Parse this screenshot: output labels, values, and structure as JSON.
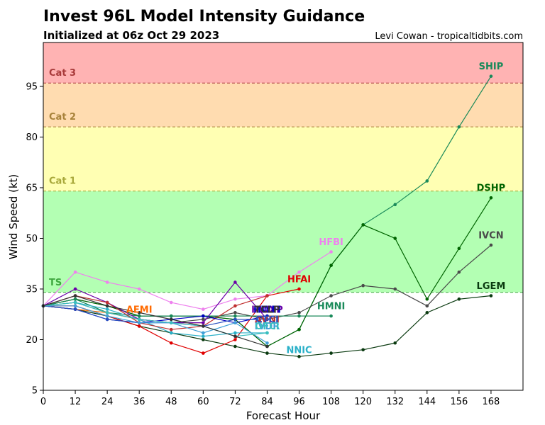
{
  "chart_data": {
    "type": "line",
    "title": "Invest 96L Model Intensity Guidance",
    "subtitle": "Initialized at 06z Oct 29 2023",
    "credit": "Levi Cowan - tropicaltidbits.com",
    "xlabel": "Forecast Hour",
    "ylabel": "Wind Speed (kt)",
    "xlim": [
      0,
      180
    ],
    "ylim": [
      5,
      108
    ],
    "xticks": [
      0,
      12,
      24,
      36,
      48,
      60,
      72,
      84,
      96,
      108,
      120,
      132,
      144,
      156,
      168
    ],
    "yticks": [
      5,
      20,
      35,
      50,
      65,
      80,
      95
    ],
    "grid": false,
    "bands": [
      {
        "label": "TS",
        "from": 34,
        "to": 64,
        "color": "#b3ffb3",
        "label_color": "#3fa83f"
      },
      {
        "label": "Cat 1",
        "from": 64,
        "to": 83,
        "color": "#ffffb3",
        "label_color": "#a8a83a"
      },
      {
        "label": "Cat 2",
        "from": 83,
        "to": 96,
        "color": "#ffdcb0",
        "label_color": "#a8823a"
      },
      {
        "label": "Cat 3",
        "from": 96,
        "to": 108,
        "color": "#ffb3b3",
        "label_color": "#a83a3a"
      }
    ],
    "series": [
      {
        "name": "SHIP",
        "color": "#1a8a5a",
        "label_at": [
          168,
          100
        ],
        "points": [
          [
            0,
            30
          ],
          [
            12,
            32
          ],
          [
            24,
            30
          ],
          [
            36,
            27
          ],
          [
            48,
            27
          ],
          [
            60,
            27
          ],
          [
            72,
            26
          ],
          [
            84,
            18
          ],
          [
            96,
            23
          ],
          [
            108,
            42
          ],
          [
            120,
            54
          ],
          [
            132,
            60
          ],
          [
            144,
            67
          ],
          [
            156,
            83
          ],
          [
            168,
            98
          ]
        ]
      },
      {
        "name": "DSHP",
        "color": "#006400",
        "label_at": [
          168,
          64
        ],
        "points": [
          [
            0,
            30
          ],
          [
            12,
            32
          ],
          [
            24,
            30
          ],
          [
            36,
            27
          ],
          [
            48,
            27
          ],
          [
            60,
            27
          ],
          [
            72,
            26
          ],
          [
            84,
            18
          ],
          [
            96,
            23
          ],
          [
            108,
            42
          ],
          [
            120,
            54
          ],
          [
            132,
            50
          ],
          [
            144,
            32
          ],
          [
            156,
            47
          ],
          [
            168,
            62
          ]
        ]
      },
      {
        "name": "IVCN",
        "color": "#4a4a4a",
        "label_at": [
          168,
          50
        ],
        "points": [
          [
            0,
            30
          ],
          [
            12,
            31
          ],
          [
            24,
            28
          ],
          [
            36,
            26
          ],
          [
            48,
            25
          ],
          [
            60,
            26
          ],
          [
            72,
            28
          ],
          [
            84,
            26
          ],
          [
            96,
            28
          ],
          [
            108,
            33
          ],
          [
            120,
            36
          ],
          [
            132,
            35
          ],
          [
            144,
            30
          ],
          [
            156,
            40
          ],
          [
            168,
            48
          ]
        ]
      },
      {
        "name": "LGEM",
        "color": "#0a3a10",
        "label_at": [
          168,
          35
        ],
        "points": [
          [
            0,
            30
          ],
          [
            12,
            29
          ],
          [
            24,
            27
          ],
          [
            36,
            24
          ],
          [
            48,
            22
          ],
          [
            60,
            20
          ],
          [
            72,
            18
          ],
          [
            84,
            16
          ],
          [
            96,
            15
          ],
          [
            108,
            16
          ],
          [
            120,
            17
          ],
          [
            132,
            19
          ],
          [
            144,
            28
          ],
          [
            156,
            32
          ],
          [
            168,
            33
          ]
        ]
      },
      {
        "name": "HFBI",
        "color": "#ee82ee",
        "label_at": [
          108,
          48
        ],
        "points": [
          [
            0,
            30
          ],
          [
            12,
            40
          ],
          [
            24,
            37
          ],
          [
            36,
            35
          ],
          [
            48,
            31
          ],
          [
            60,
            29
          ],
          [
            72,
            32
          ],
          [
            84,
            33
          ],
          [
            96,
            40
          ],
          [
            108,
            46
          ]
        ]
      },
      {
        "name": "HFAI",
        "color": "#e00000",
        "label_at": [
          96,
          37
        ],
        "points": [
          [
            0,
            30
          ],
          [
            12,
            30
          ],
          [
            24,
            27
          ],
          [
            36,
            24
          ],
          [
            48,
            19
          ],
          [
            60,
            16
          ],
          [
            72,
            20
          ],
          [
            84,
            33
          ],
          [
            96,
            35
          ]
        ]
      },
      {
        "name": "HMNI",
        "color": "#1a8a5a",
        "label_at": [
          108,
          29
        ],
        "points": [
          [
            0,
            30
          ],
          [
            12,
            32
          ],
          [
            24,
            28
          ],
          [
            36,
            27
          ],
          [
            48,
            27
          ],
          [
            60,
            27
          ],
          [
            72,
            27
          ],
          [
            84,
            27
          ],
          [
            96,
            27
          ],
          [
            108,
            27
          ]
        ]
      },
      {
        "name": "NNIC",
        "color": "#2ab0c8",
        "label_at": [
          96,
          16
        ],
        "points": [
          [
            0,
            30
          ],
          [
            12,
            31
          ],
          [
            24,
            29
          ],
          [
            36,
            26
          ],
          [
            48,
            22
          ],
          [
            60,
            21
          ],
          [
            72,
            22
          ],
          [
            84,
            22
          ]
        ]
      },
      {
        "name": "AEMI",
        "color": "#ff6a00",
        "label_at": [
          36,
          28
        ],
        "points": [
          [
            0,
            30
          ],
          [
            12,
            29
          ],
          [
            24,
            28
          ],
          [
            36,
            26
          ],
          [
            48,
            25
          ],
          [
            60,
            25
          ]
        ]
      },
      {
        "name": "HWXP",
        "color": "#6a00a8",
        "label_at": [
          84,
          28
        ],
        "points": [
          [
            0,
            30
          ],
          [
            12,
            35
          ],
          [
            24,
            31
          ],
          [
            36,
            26
          ],
          [
            48,
            25
          ],
          [
            60,
            25
          ],
          [
            72,
            37
          ],
          [
            84,
            26
          ]
        ]
      },
      {
        "name": "AVNI",
        "color": "#c03030",
        "label_at": [
          84,
          25
        ],
        "points": [
          [
            0,
            30
          ],
          [
            12,
            33
          ],
          [
            24,
            31
          ],
          [
            36,
            25
          ],
          [
            48,
            23
          ],
          [
            60,
            24
          ],
          [
            72,
            30
          ],
          [
            84,
            33
          ]
        ]
      },
      {
        "name": "HWFI",
        "color": "#0000c0",
        "label_at": [
          84,
          28
        ],
        "points": [
          [
            0,
            30
          ],
          [
            12,
            29
          ],
          [
            24,
            26
          ],
          [
            36,
            25
          ],
          [
            48,
            26
          ],
          [
            60,
            27
          ],
          [
            72,
            25
          ],
          [
            84,
            27
          ]
        ]
      },
      {
        "name": "CTCI",
        "color": "#2a50c0",
        "label_at": [
          84,
          25
        ],
        "points": [
          [
            0,
            30
          ],
          [
            12,
            29
          ],
          [
            24,
            26
          ],
          [
            36,
            25
          ],
          [
            48,
            25
          ],
          [
            60,
            24
          ],
          [
            72,
            26
          ],
          [
            84,
            26
          ]
        ]
      },
      {
        "name": "IVDR",
        "color": "#40a0d8",
        "label_at": [
          84,
          23
        ],
        "points": [
          [
            0,
            30
          ],
          [
            12,
            30
          ],
          [
            24,
            27
          ],
          [
            36,
            25
          ],
          [
            48,
            25
          ],
          [
            60,
            22
          ],
          [
            72,
            25
          ],
          [
            84,
            19
          ]
        ]
      },
      {
        "name": "OFCI",
        "color": "#3bbfbf",
        "label_at": [
          84,
          23
        ],
        "points": [
          [
            0,
            30
          ],
          [
            12,
            31
          ],
          [
            24,
            28
          ],
          [
            36,
            26
          ],
          [
            48,
            25
          ],
          [
            60,
            24
          ],
          [
            72,
            21
          ],
          [
            84,
            22
          ]
        ]
      },
      {
        "name": "TCLP",
        "color": "#333333",
        "label_at": [
          84,
          28
        ],
        "points": [
          [
            0,
            30
          ],
          [
            12,
            33
          ],
          [
            24,
            30
          ],
          [
            36,
            28
          ],
          [
            48,
            26
          ],
          [
            60,
            24
          ],
          [
            72,
            21
          ],
          [
            84,
            18
          ]
        ]
      }
    ]
  }
}
